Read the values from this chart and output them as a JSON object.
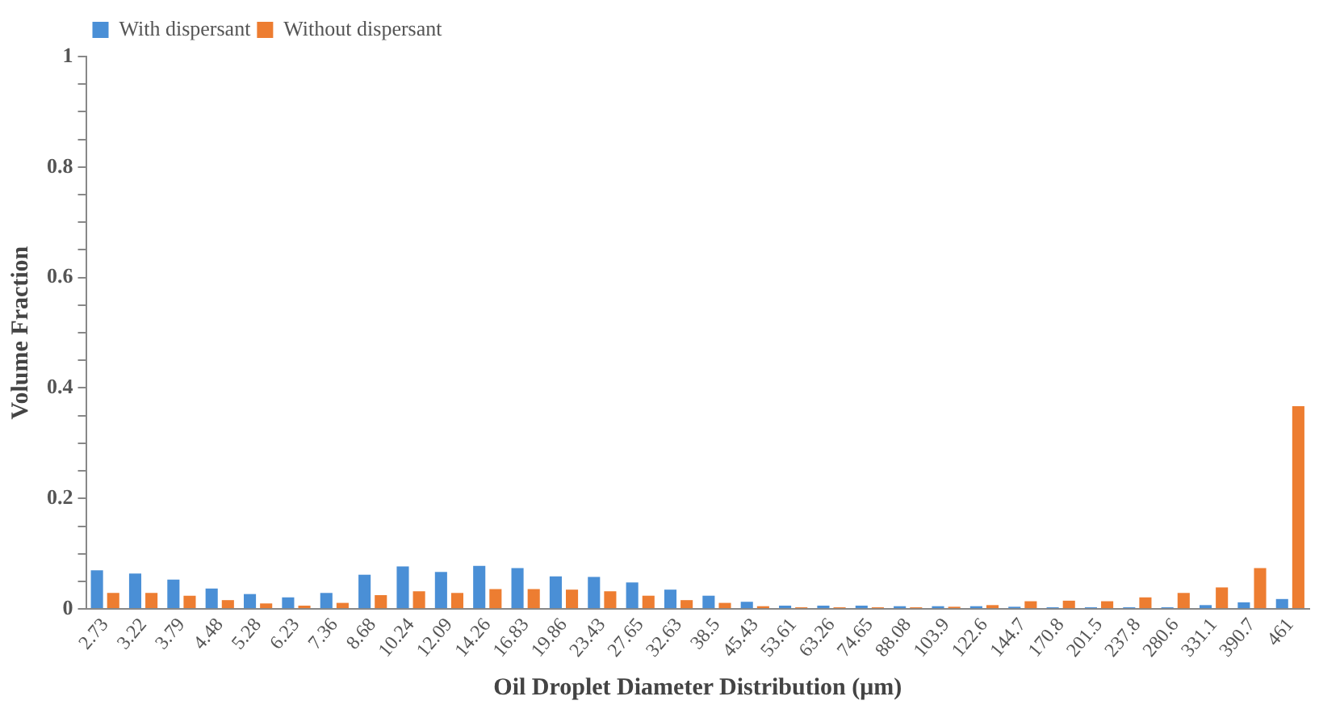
{
  "chart_data": {
    "type": "bar",
    "xlabel": "Oil Droplet Diameter Distribution (μm)",
    "ylabel": "Volume Fraction",
    "categories": [
      "2.73",
      "3.22",
      "3.79",
      "4.48",
      "5.28",
      "6.23",
      "7.36",
      "8.68",
      "10.24",
      "12.09",
      "14.26",
      "16.83",
      "19.86",
      "23.43",
      "27.65",
      "32.63",
      "38.5",
      "45.43",
      "53.61",
      "63.26",
      "74.65",
      "88.08",
      "103.9",
      "122.6",
      "144.7",
      "170.8",
      "201.5",
      "237.8",
      "280.6",
      "331.1",
      "390.7",
      "461"
    ],
    "series": [
      {
        "name": "With dispersant",
        "color": "#4a8fd6",
        "values": [
          0.07,
          0.064,
          0.053,
          0.037,
          0.027,
          0.021,
          0.029,
          0.062,
          0.077,
          0.067,
          0.078,
          0.074,
          0.059,
          0.058,
          0.048,
          0.035,
          0.024,
          0.013,
          0.006,
          0.006,
          0.006,
          0.005,
          0.005,
          0.005,
          0.004,
          0.003,
          0.003,
          0.003,
          0.003,
          0.007,
          0.012,
          0.018
        ]
      },
      {
        "name": "Without dispersant",
        "color": "#ed7d31",
        "values": [
          0.029,
          0.029,
          0.024,
          0.016,
          0.01,
          0.006,
          0.011,
          0.025,
          0.032,
          0.029,
          0.036,
          0.036,
          0.035,
          0.032,
          0.024,
          0.016,
          0.011,
          0.005,
          0.003,
          0.003,
          0.003,
          0.003,
          0.004,
          0.007,
          0.014,
          0.015,
          0.014,
          0.021,
          0.029,
          0.039,
          0.074,
          0.367
        ]
      }
    ],
    "ylim": [
      0,
      1
    ],
    "yticks": [
      0,
      {
        "value": 0.05,
        "label": null
      },
      {
        "value": 0.1,
        "label": null
      },
      {
        "value": 0.15,
        "label": null
      },
      0.2,
      {
        "value": 0.25,
        "label": null
      },
      {
        "value": 0.3,
        "label": null
      },
      {
        "value": 0.35,
        "label": null
      },
      0.4,
      {
        "value": 0.45,
        "label": null
      },
      {
        "value": 0.5,
        "label": null
      },
      {
        "value": 0.55,
        "label": null
      },
      0.6,
      {
        "value": 0.65,
        "label": null
      },
      {
        "value": 0.7,
        "label": null
      },
      {
        "value": 0.75,
        "label": null
      },
      0.8,
      {
        "value": 0.85,
        "label": null
      },
      {
        "value": 0.9,
        "label": null
      },
      {
        "value": 0.95,
        "label": null
      },
      1
    ],
    "grid": false,
    "legend": "top left"
  }
}
